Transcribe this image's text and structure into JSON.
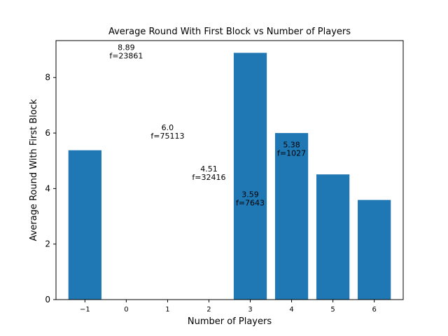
{
  "chart_data": {
    "type": "bar",
    "title": "Average Round With First Block vs Number of Players",
    "xlabel": "Number of Players",
    "ylabel": "Average Round With First Block",
    "categories": [
      "−1",
      "0",
      "1",
      "2",
      "3",
      "4",
      "5",
      "6"
    ],
    "x": [
      -1,
      0,
      1,
      2,
      3,
      4,
      5,
      6
    ],
    "values": [
      5.38,
      0,
      0,
      0,
      8.89,
      6.0,
      4.51,
      3.59
    ],
    "xlim": [
      -1.7,
      6.7
    ],
    "ylim": [
      0,
      9.33
    ],
    "yticks": [
      0,
      2,
      4,
      6,
      8
    ],
    "grid": false,
    "bar_color": "#1f77b4",
    "annotations": [
      {
        "line1": "8.89",
        "line2": "f=23861",
        "x": 0,
        "y": 8.89
      },
      {
        "line1": "6.0",
        "line2": "f=75113",
        "x": 1,
        "y": 6.0
      },
      {
        "line1": "4.51",
        "line2": "f=32416",
        "x": 2,
        "y": 4.51
      },
      {
        "line1": "3.59",
        "line2": "f=7643",
        "x": 3,
        "y": 3.59
      },
      {
        "line1": "5.38",
        "line2": "f=1027",
        "x": 4,
        "y": 5.38
      }
    ]
  }
}
